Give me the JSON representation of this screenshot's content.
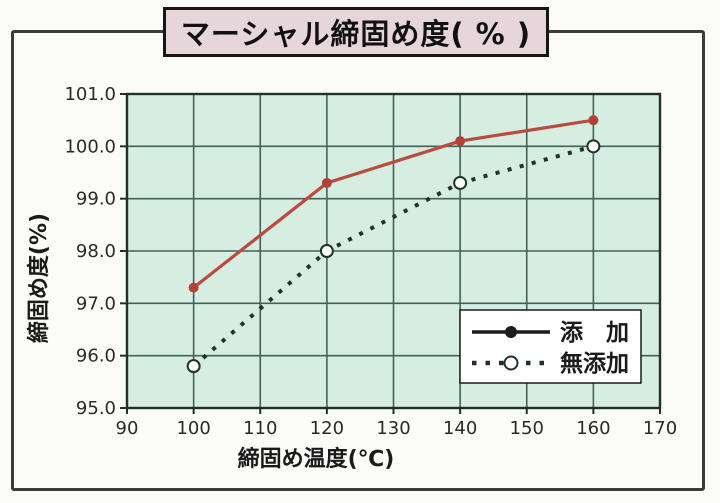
{
  "page": {
    "title": "マーシャル締固め度( % )"
  },
  "chart_data": {
    "type": "line",
    "title": "マーシャル締固め度( % )",
    "xlabel": "締固め温度(℃)",
    "ylabel": "締固め度(%)",
    "xlim": [
      90,
      170
    ],
    "ylim": [
      95.0,
      101.0
    ],
    "xticks": [
      90,
      100,
      110,
      120,
      130,
      140,
      150,
      160,
      170
    ],
    "yticks": [
      95.0,
      96.0,
      97.0,
      98.0,
      99.0,
      100.0,
      101.0
    ],
    "ytick_labels": [
      "95.0",
      "96.0",
      "97.0",
      "98.0",
      "99.0",
      "100.0",
      "101.0"
    ],
    "grid": true,
    "legend_position": "lower right",
    "series": [
      {
        "name": "添　加",
        "x": [
          100,
          120,
          140,
          160
        ],
        "values": [
          97.3,
          99.3,
          100.1,
          100.5
        ],
        "line_style": "solid",
        "line_color": "#bb4a40",
        "marker": "filled-circle",
        "marker_color": "#b2413a",
        "legend_line_color": "#1c1c1c"
      },
      {
        "name": "無添加",
        "x": [
          100,
          120,
          140,
          160
        ],
        "values": [
          95.8,
          98.0,
          99.3,
          100.0
        ],
        "line_style": "dotted",
        "line_color": "#203229",
        "marker": "open-circle",
        "marker_color": "#ffffff",
        "legend_line_color": "#203229"
      }
    ],
    "colors": {
      "page_bg": "#fbfbf8",
      "plot_bg": "#d6eee1",
      "grid": "#41615a",
      "plot_frame": "#20302b",
      "title_box_bg": "#e6d5da",
      "text": "#222222"
    }
  }
}
